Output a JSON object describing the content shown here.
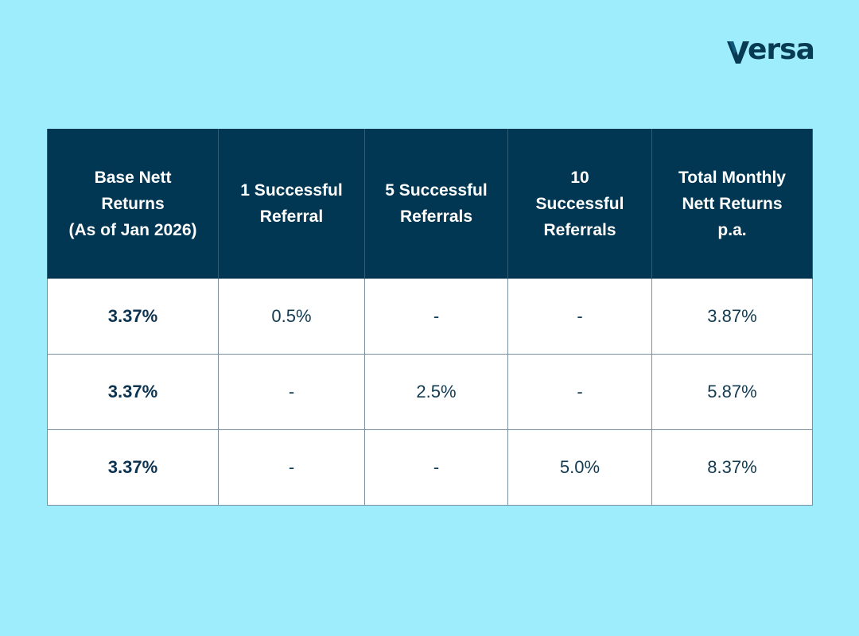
{
  "brand": {
    "name": "ersa",
    "logo_letter": "V",
    "color": "#073a53"
  },
  "colors": {
    "background": "#9dedfd",
    "header_bg": "#013752",
    "header_text": "#ffffff",
    "cell_bg": "#ffffff",
    "cell_text": "#123b52"
  },
  "table": {
    "headers": [
      "Base Nett\nReturns\n(As of Jan 2026)",
      "1 Successful\nReferral",
      "5 Successful\nReferrals",
      "10\nSuccessful\nReferrals",
      "Total Monthly\nNett Returns\np.a."
    ],
    "rows": [
      [
        "3.37%",
        "0.5%",
        "-",
        "-",
        "3.87%"
      ],
      [
        "3.37%",
        "-",
        "2.5%",
        "-",
        "5.87%"
      ],
      [
        "3.37%",
        "-",
        "-",
        "5.0%",
        "8.37%"
      ]
    ]
  }
}
